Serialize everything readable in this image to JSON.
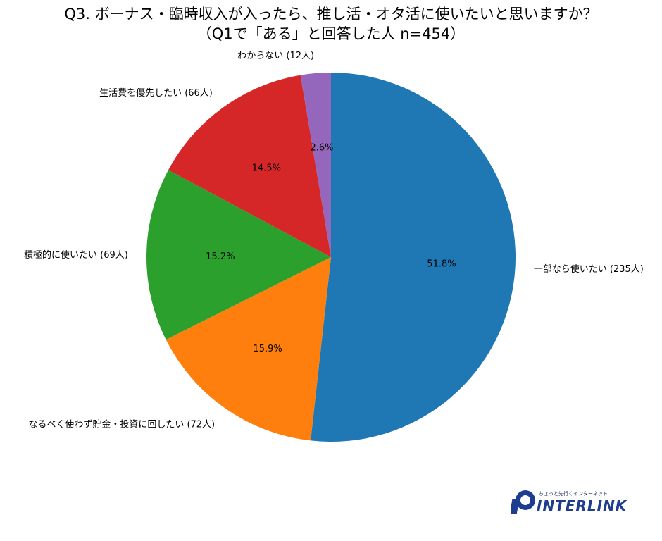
{
  "title_lines": [
    "Q3. ボーナス・臨時収入が入ったら、推し活・オタ活に使いたいと思いますか？",
    "（Q1で「ある」と回答した人 n=454）"
  ],
  "chart_data": {
    "type": "pie",
    "title": "Q3. ボーナス・臨時収入が入ったら、推し活・オタ活に使いたいと思いますか？（Q1で「ある」と回答した人 n=454）",
    "n": 454,
    "start_angle_deg": 90,
    "direction": "clockwise",
    "slices": [
      {
        "label": "一部なら使いたい (235人)",
        "count": 235,
        "percent_label": "51.8%",
        "color": "#1f77b4"
      },
      {
        "label": "なるべく使わず貯金・投資に回したい (72人)",
        "count": 72,
        "percent_label": "15.9%",
        "color": "#ff7f0e"
      },
      {
        "label": "積極的に使いたい (69人)",
        "count": 69,
        "percent_label": "15.2%",
        "color": "#2ca02c"
      },
      {
        "label": "生活費を優先したい (66人)",
        "count": 66,
        "percent_label": "14.5%",
        "color": "#d62728"
      },
      {
        "label": "わからない (12人)",
        "count": 12,
        "percent_label": "2.6%",
        "color": "#9467bd"
      }
    ]
  },
  "logo": {
    "tagline": "ちょっと先行くインターネット",
    "name": "INTERLINK",
    "color": "#1e3d8f"
  }
}
